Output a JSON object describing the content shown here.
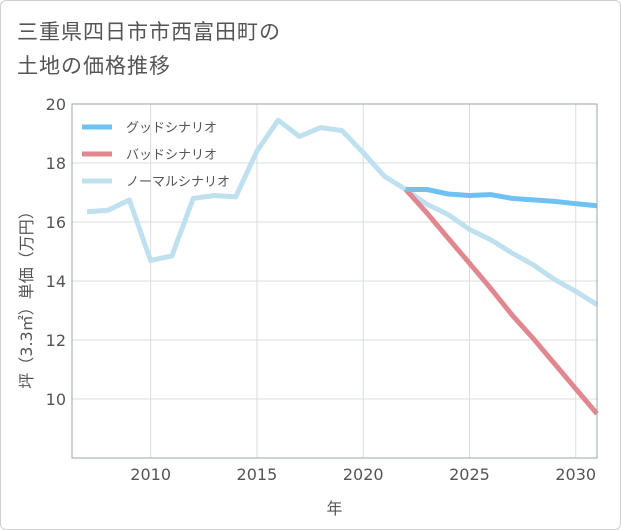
{
  "title_lines": [
    "三重県四日市市西富田町の",
    "土地の価格推移"
  ],
  "chart_data": {
    "type": "line",
    "title": "三重県四日市市西富田町の土地の価格推移",
    "xlabel": "年",
    "ylabel": "坪（3.3㎡）単価（万円）",
    "xlim": [
      2006.3,
      2031
    ],
    "ylim": [
      8.0,
      20.0
    ],
    "x_ticks": [
      2010,
      2015,
      2020,
      2025,
      2030
    ],
    "y_ticks": [
      10,
      12,
      14,
      16,
      18,
      20
    ],
    "legend_position": "top-left",
    "series": [
      {
        "name": "グッドシナリオ",
        "color": "#6ec1f0",
        "x": [
          2022,
          2023,
          2024,
          2025,
          2026,
          2027,
          2028,
          2029,
          2030,
          2031
        ],
        "values": [
          17.1,
          17.1,
          16.95,
          16.9,
          16.93,
          16.8,
          16.75,
          16.7,
          16.62,
          16.55
        ]
      },
      {
        "name": "バッドシナリオ",
        "color": "#e0878f",
        "x": [
          2022,
          2023,
          2024,
          2025,
          2026,
          2027,
          2028,
          2029,
          2030,
          2031
        ],
        "values": [
          17.1,
          16.3,
          15.45,
          14.6,
          13.75,
          12.85,
          12.05,
          11.2,
          10.35,
          9.5
        ]
      },
      {
        "name": "ノーマルシナリオ",
        "color": "#bfe0ee",
        "x": [
          2007,
          2008,
          2009,
          2010,
          2011,
          2012,
          2013,
          2014,
          2015,
          2016,
          2017,
          2018,
          2019,
          2020,
          2021,
          2022,
          2023,
          2024,
          2025,
          2026,
          2027,
          2028,
          2029,
          2030,
          2031
        ],
        "values": [
          16.35,
          16.4,
          16.75,
          14.7,
          14.85,
          16.8,
          16.9,
          16.85,
          18.4,
          19.45,
          18.9,
          19.2,
          19.1,
          18.35,
          17.55,
          17.1,
          16.6,
          16.25,
          15.75,
          15.4,
          14.95,
          14.55,
          14.05,
          13.65,
          13.2
        ]
      }
    ]
  }
}
